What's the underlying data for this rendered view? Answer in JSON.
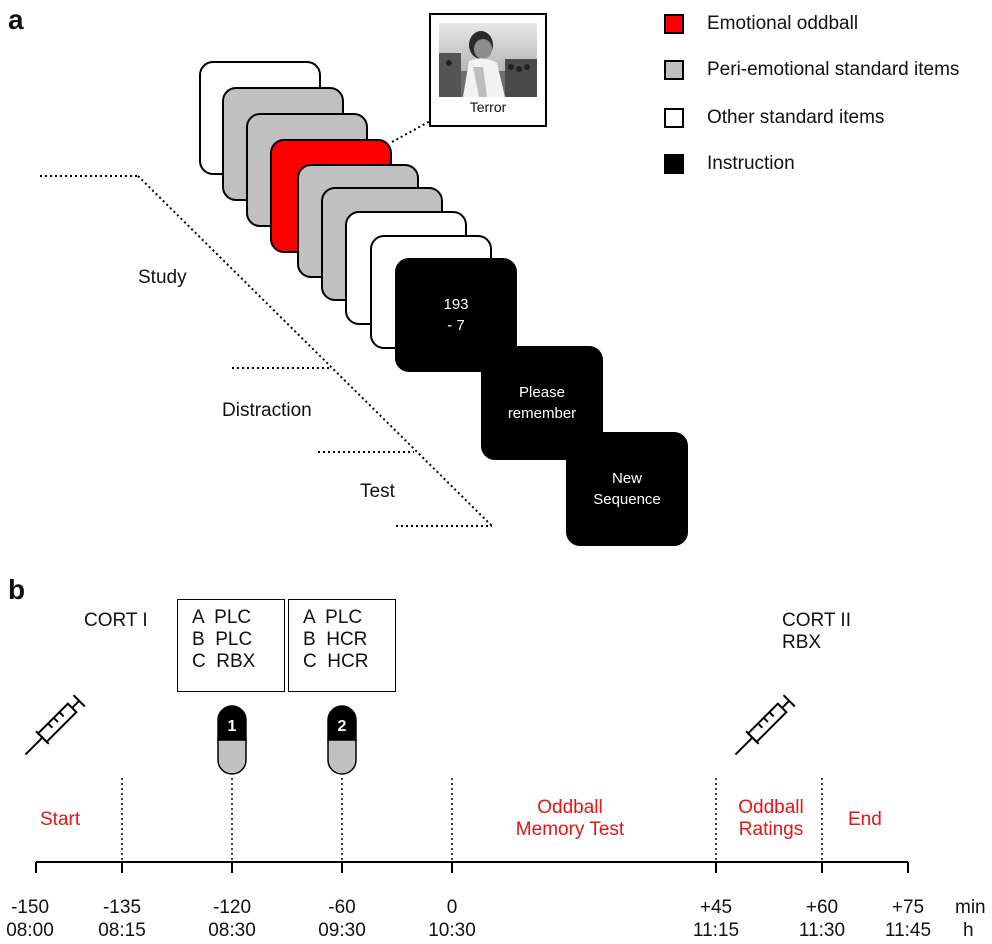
{
  "panel_a": {
    "label": "a",
    "legend": [
      {
        "label": "Emotional oddball",
        "color": "#ff0000"
      },
      {
        "label": "Peri-emotional standard items",
        "color": "#c0c0c0"
      },
      {
        "label": "Other standard items",
        "color": "#ffffff"
      },
      {
        "label": "Instruction",
        "color": "#000000"
      }
    ],
    "picture_caption": "Terror",
    "instruction_cards": [
      "193\n- 7",
      "Please\nremember",
      "New\nSequence"
    ],
    "phases": [
      "Study",
      "Distraction",
      "Test"
    ]
  },
  "panel_b": {
    "label": "b",
    "cort_i": "CORT I",
    "cort_ii": [
      "CORT II",
      "RBX"
    ],
    "pill_boxes": [
      {
        "lines": [
          "A  PLC",
          "B  PLC",
          "C  RBX"
        ],
        "pill_number": "1"
      },
      {
        "lines": [
          "A  PLC",
          "B  HCR",
          "C  HCR"
        ],
        "pill_number": "2"
      }
    ],
    "phase_labels": {
      "start": "Start",
      "memory_test": [
        "Oddball",
        "Memory Test"
      ],
      "ratings": [
        "Oddball",
        "Ratings"
      ],
      "end": "End"
    },
    "minutes": [
      "-150",
      "-135",
      "-120",
      "-60",
      "0",
      "+45",
      "+60",
      "+75"
    ],
    "clock": [
      "08:00",
      "08:15",
      "08:30",
      "09:30",
      "10:30",
      "11:15",
      "11:30",
      "11:45"
    ],
    "unit_minutes": "min",
    "unit_hours": "h",
    "label_color": "#ee1111",
    "icons": [
      "syringe-icon",
      "pill-icon"
    ]
  }
}
